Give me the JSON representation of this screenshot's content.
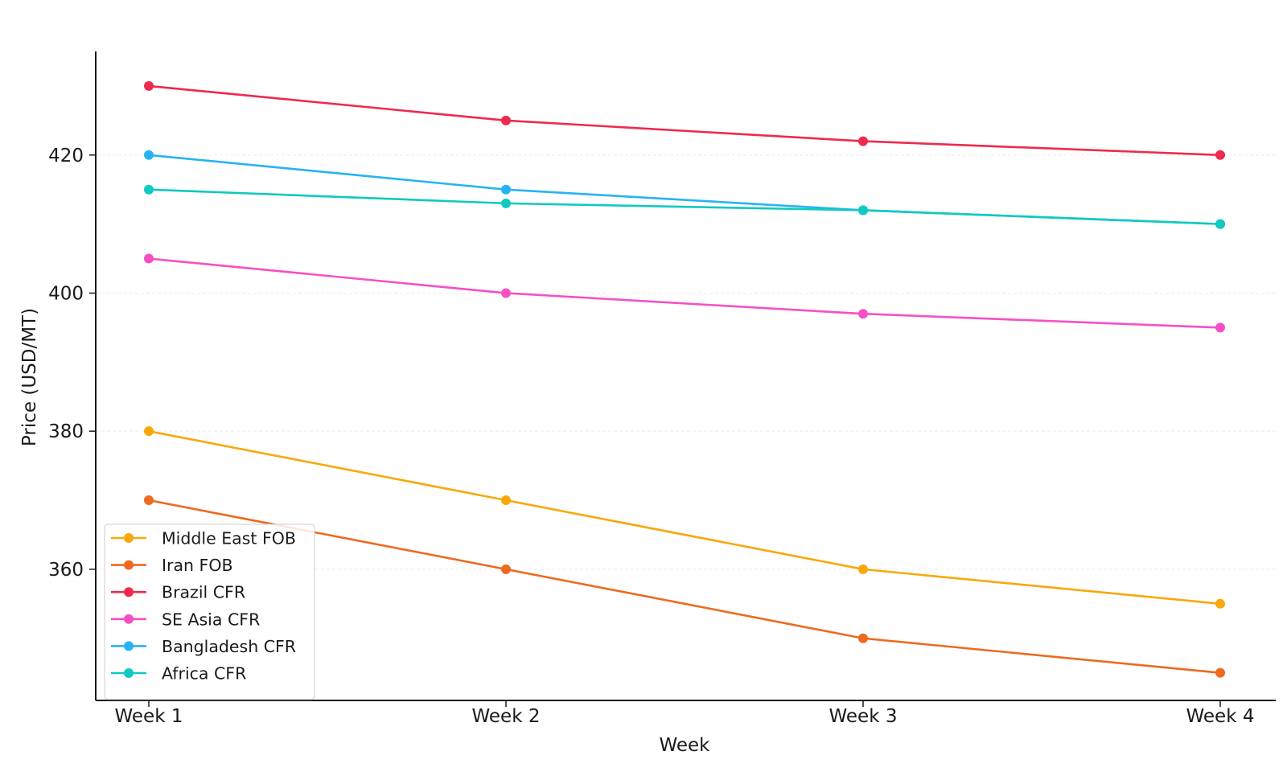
{
  "chart_data": {
    "type": "line",
    "title": "",
    "xlabel": "Week",
    "ylabel": "Price (USD/MT)",
    "categories": [
      "Week 1",
      "Week 2",
      "Week 3",
      "Week 4"
    ],
    "ylim": [
      341,
      435
    ],
    "yticks": [
      360,
      380,
      400,
      420
    ],
    "grid": true,
    "legend_position": "lower-left",
    "series": [
      {
        "name": "Middle East FOB",
        "color": "#f9a80b",
        "values": [
          380,
          370,
          360,
          355
        ]
      },
      {
        "name": "Iran FOB",
        "color": "#ed6a1f",
        "values": [
          370,
          360,
          350,
          345
        ]
      },
      {
        "name": "Brazil CFR",
        "color": "#ee2a4e",
        "values": [
          430,
          425,
          422,
          420
        ]
      },
      {
        "name": "SE Asia CFR",
        "color": "#f650c5",
        "values": [
          405,
          400,
          397,
          395
        ]
      },
      {
        "name": "Bangladesh CFR",
        "color": "#27b3f3",
        "values": [
          420,
          415,
          412,
          410
        ]
      },
      {
        "name": "Africa CFR",
        "color": "#10c9c0",
        "values": [
          415,
          413,
          412,
          410
        ]
      }
    ]
  }
}
